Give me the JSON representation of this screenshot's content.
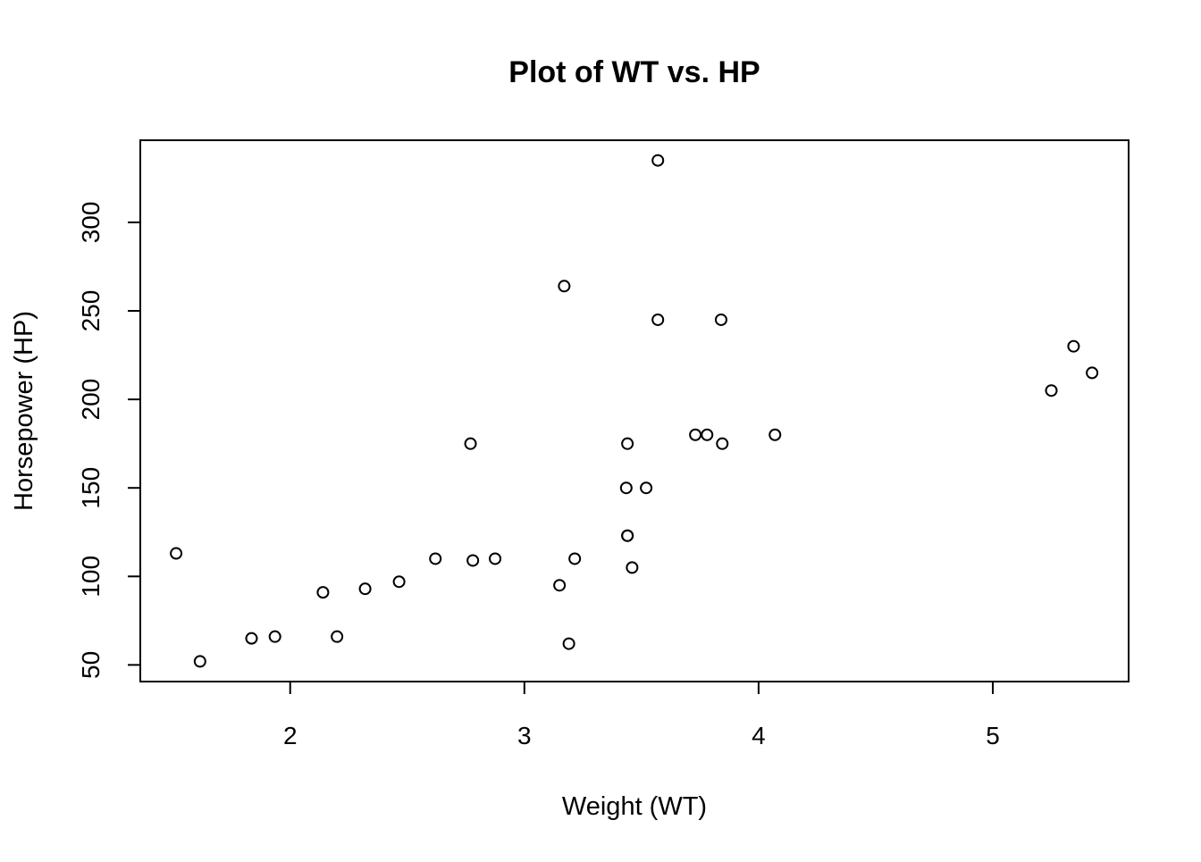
{
  "chart_data": {
    "type": "scatter",
    "title": "Plot of WT vs. HP",
    "xlabel": "Weight (WT)",
    "ylabel": "Horsepower (HP)",
    "xlim": [
      1.36,
      5.58
    ],
    "ylim": [
      40.6,
      346.4
    ],
    "xticks": [
      2,
      3,
      4,
      5
    ],
    "yticks": [
      50,
      100,
      150,
      200,
      250,
      300
    ],
    "grid": false,
    "marker": "open-circle",
    "color": "#000000",
    "points": [
      {
        "x": 2.62,
        "y": 110
      },
      {
        "x": 2.875,
        "y": 110
      },
      {
        "x": 2.32,
        "y": 93
      },
      {
        "x": 3.215,
        "y": 110
      },
      {
        "x": 3.44,
        "y": 175
      },
      {
        "x": 3.46,
        "y": 105
      },
      {
        "x": 3.57,
        "y": 245
      },
      {
        "x": 3.19,
        "y": 62
      },
      {
        "x": 3.15,
        "y": 95
      },
      {
        "x": 3.44,
        "y": 123
      },
      {
        "x": 3.44,
        "y": 123
      },
      {
        "x": 4.07,
        "y": 180
      },
      {
        "x": 3.73,
        "y": 180
      },
      {
        "x": 3.78,
        "y": 180
      },
      {
        "x": 5.25,
        "y": 205
      },
      {
        "x": 5.424,
        "y": 215
      },
      {
        "x": 5.345,
        "y": 230
      },
      {
        "x": 2.2,
        "y": 66
      },
      {
        "x": 1.615,
        "y": 52
      },
      {
        "x": 1.835,
        "y": 65
      },
      {
        "x": 2.465,
        "y": 97
      },
      {
        "x": 3.52,
        "y": 150
      },
      {
        "x": 3.435,
        "y": 150
      },
      {
        "x": 3.84,
        "y": 245
      },
      {
        "x": 3.845,
        "y": 175
      },
      {
        "x": 1.935,
        "y": 66
      },
      {
        "x": 2.14,
        "y": 91
      },
      {
        "x": 1.513,
        "y": 113
      },
      {
        "x": 3.17,
        "y": 264
      },
      {
        "x": 2.77,
        "y": 175
      },
      {
        "x": 3.57,
        "y": 335
      },
      {
        "x": 2.78,
        "y": 109
      }
    ]
  }
}
